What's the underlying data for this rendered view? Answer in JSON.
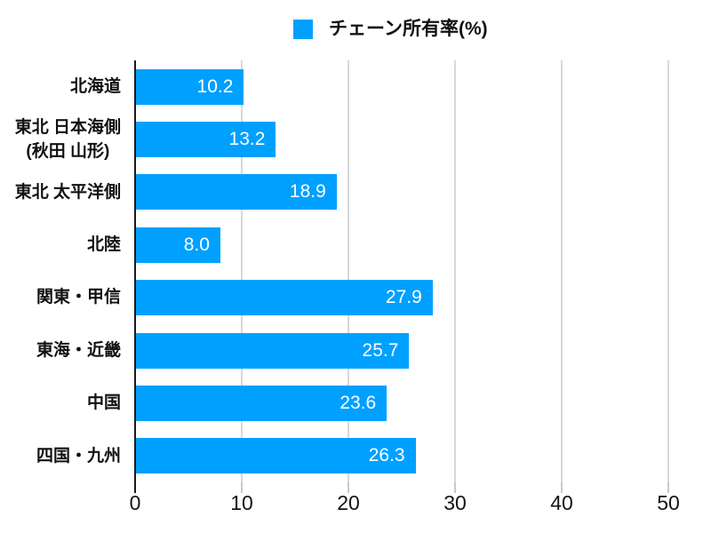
{
  "chart_data": {
    "type": "bar",
    "orientation": "horizontal",
    "legend": "チェーン所有率(%)",
    "legend_position": "top",
    "categories": [
      "北海道",
      "東北 日本海側\n(秋田 山形)",
      "東北 太平洋側",
      "北陸",
      "関東・甲信",
      "東海・近畿",
      "中国",
      "四国・九州"
    ],
    "values": [
      10.2,
      13.2,
      18.9,
      8.0,
      27.9,
      25.7,
      23.6,
      26.3
    ],
    "value_labels": [
      "10.2",
      "13.2",
      "18.9",
      "8.0",
      "27.9",
      "25.7",
      "23.6",
      "26.3"
    ],
    "xlabel": "",
    "ylabel": "",
    "xlim": [
      0,
      50
    ],
    "xticks": [
      0,
      10,
      20,
      30,
      40,
      50
    ],
    "grid": true
  },
  "colors": {
    "bar": "#00A0FF",
    "gridline": "#D8D8D8",
    "axis_line": "#1A1A1A",
    "tick_mark": "#C9C9C9",
    "text": "#111111",
    "value_text": "#FFFFFF",
    "background": "#FFFFFF"
  }
}
